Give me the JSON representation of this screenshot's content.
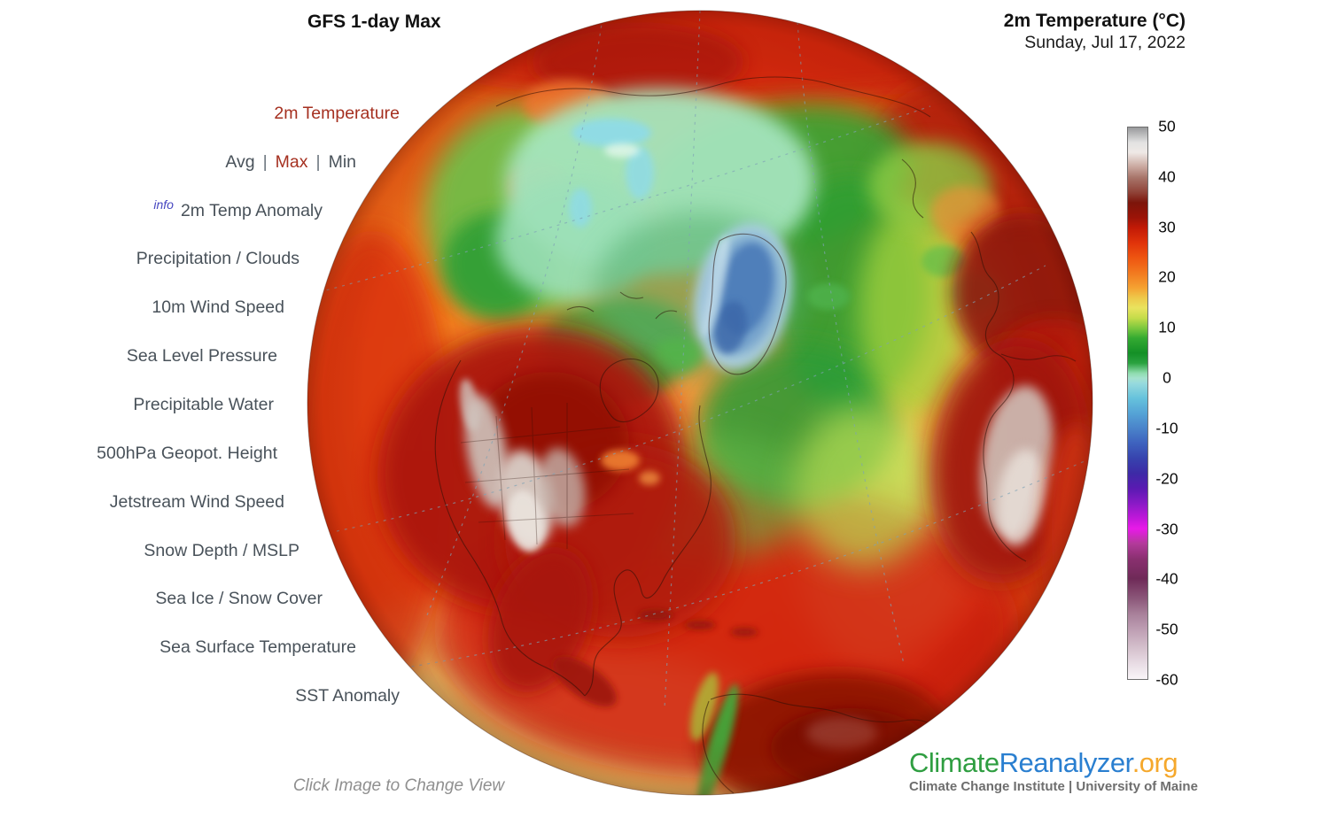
{
  "header": {
    "left_title": "GFS 1-day Max",
    "right_title": "2m Temperature (°C)",
    "right_subtitle": "Sunday, Jul 17, 2022"
  },
  "sidebar": {
    "selected_color": "#a53020",
    "text_color": "#49525a",
    "items": {
      "temp2m": "2m Temperature",
      "anomaly2m": "2m Temp Anomaly",
      "precip": "Precipitation / Clouds",
      "wind10m": "10m Wind Speed",
      "slp": "Sea Level Pressure",
      "pwater": "Precipitable Water",
      "gph500": "500hPa Geopot. Height",
      "jetstream": "Jetstream Wind Speed",
      "snow": "Snow Depth / MSLP",
      "seaice": "Sea Ice / Snow Cover",
      "sst": "Sea Surface Temperature",
      "sstanom": "SST Anomaly"
    },
    "modes": {
      "avg": "Avg",
      "max": "Max",
      "min": "Min",
      "separator": "|"
    },
    "info_label": "info"
  },
  "map": {
    "caption": "Click Image to Change View",
    "palette": {
      "ocean_orange": "#f2811f",
      "hot_land_red": "#a81408",
      "very_hot_gray": "#d9cfc8",
      "arctic_mint": "#9ce0b8",
      "greenland_ice_blue": "#5c88c4",
      "cool_green": "#2aa040",
      "warm_yellow": "#e9e35e"
    }
  },
  "colorbar": {
    "ticks": [
      "50",
      "40",
      "30",
      "20",
      "10",
      "0",
      "-10",
      "-20",
      "-30",
      "-40",
      "-50",
      "-60"
    ],
    "range": [
      50,
      -60
    ],
    "stops": [
      {
        "value": 50,
        "color": "#98999b"
      },
      {
        "value": 47,
        "color": "#e2e2e2"
      },
      {
        "value": 45,
        "color": "#efe9e6"
      },
      {
        "value": 42,
        "color": "#c7a49b"
      },
      {
        "value": 40,
        "color": "#a8756a"
      },
      {
        "value": 37,
        "color": "#8f4136"
      },
      {
        "value": 35,
        "color": "#7c150a"
      },
      {
        "value": 32,
        "color": "#9c1408"
      },
      {
        "value": 30,
        "color": "#c21a06"
      },
      {
        "value": 27,
        "color": "#e0330a"
      },
      {
        "value": 24,
        "color": "#ee5511"
      },
      {
        "value": 21,
        "color": "#f2791f"
      },
      {
        "value": 18,
        "color": "#f5a232"
      },
      {
        "value": 16,
        "color": "#eec94a"
      },
      {
        "value": 14,
        "color": "#e9e35e"
      },
      {
        "value": 12,
        "color": "#c4dc4a"
      },
      {
        "value": 10,
        "color": "#7cc83e"
      },
      {
        "value": 8,
        "color": "#34aa32"
      },
      {
        "value": 5,
        "color": "#149026"
      },
      {
        "value": 3,
        "color": "#2aa240"
      },
      {
        "value": 1,
        "color": "#8fdcae"
      },
      {
        "value": 0,
        "color": "#a5e2cd"
      },
      {
        "value": -1,
        "color": "#97dadd"
      },
      {
        "value": -4,
        "color": "#66c2dc"
      },
      {
        "value": -7,
        "color": "#55a3d6"
      },
      {
        "value": -10,
        "color": "#4a83ca"
      },
      {
        "value": -13,
        "color": "#3e62be"
      },
      {
        "value": -16,
        "color": "#3743ae"
      },
      {
        "value": -19,
        "color": "#3d2aa6"
      },
      {
        "value": -22,
        "color": "#5a1ab2"
      },
      {
        "value": -25,
        "color": "#8a1ac6"
      },
      {
        "value": -28,
        "color": "#c218da"
      },
      {
        "value": -30,
        "color": "#e81ae8"
      },
      {
        "value": -33,
        "color": "#b23a9a"
      },
      {
        "value": -36,
        "color": "#8a3070"
      },
      {
        "value": -40,
        "color": "#6f2a58"
      },
      {
        "value": -44,
        "color": "#8c587a"
      },
      {
        "value": -47,
        "color": "#a8809a"
      },
      {
        "value": -50,
        "color": "#bd9db2"
      },
      {
        "value": -54,
        "color": "#d6c2ce"
      },
      {
        "value": -57,
        "color": "#e9dde5"
      },
      {
        "value": -60,
        "color": "#f9f5f8"
      }
    ]
  },
  "footer_logo": {
    "climate": "Climate",
    "reanalyzer": "Reanalyzer",
    "org": ".org",
    "subtitle": "Climate Change Institute | University of Maine",
    "colors": {
      "climate": "#2f9e41",
      "reanalyzer": "#2a7fd0",
      "org": "#f5a82c"
    }
  }
}
